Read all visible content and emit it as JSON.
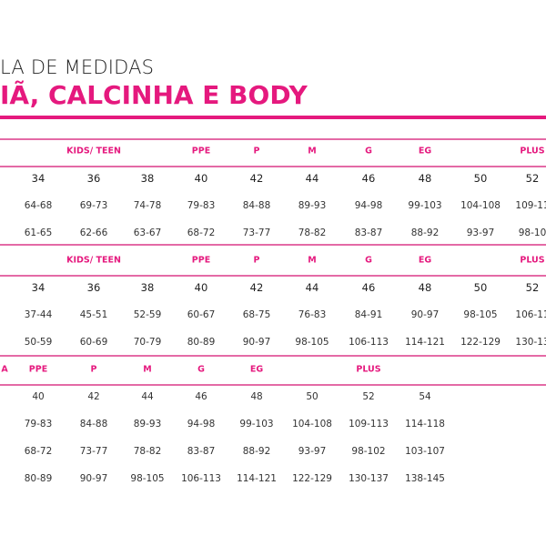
{
  "title": {
    "line1": "LA DE MEDIDAS",
    "line2": "IÃ, CALCINHA E BODY"
  },
  "colors": {
    "accent": "#e5197e",
    "rule": "#e46aa6"
  },
  "tables": [
    {
      "headers": [
        {
          "col": 1,
          "text": "KIDS/ TEEN"
        },
        {
          "col": 3,
          "text": "PPE"
        },
        {
          "col": 4,
          "text": "P"
        },
        {
          "col": 5,
          "text": "M"
        },
        {
          "col": 6,
          "text": "G"
        },
        {
          "col": 7,
          "text": "EG"
        },
        {
          "col": 9,
          "text": "PLUS"
        }
      ],
      "rows": [
        [
          "34",
          "36",
          "38",
          "40",
          "42",
          "44",
          "46",
          "48",
          "50",
          "52"
        ],
        [
          "64-68",
          "69-73",
          "74-78",
          "79-83",
          "84-88",
          "89-93",
          "94-98",
          "99-103",
          "104-108",
          "109-11"
        ],
        [
          "61-65",
          "62-66",
          "63-67",
          "68-72",
          "73-77",
          "78-82",
          "83-87",
          "88-92",
          "93-97",
          "98-10"
        ]
      ]
    },
    {
      "headers": [
        {
          "col": 1,
          "text": "KIDS/ TEEN"
        },
        {
          "col": 3,
          "text": "PPE"
        },
        {
          "col": 4,
          "text": "P"
        },
        {
          "col": 5,
          "text": "M"
        },
        {
          "col": 6,
          "text": "G"
        },
        {
          "col": 7,
          "text": "EG"
        },
        {
          "col": 9,
          "text": "PLUS"
        }
      ],
      "rows": [
        [
          "34",
          "36",
          "38",
          "40",
          "42",
          "44",
          "46",
          "48",
          "50",
          "52"
        ],
        [
          "37-44",
          "45-51",
          "52-59",
          "60-67",
          "68-75",
          "76-83",
          "84-91",
          "90-97",
          "98-105",
          "106-11"
        ],
        [
          "50-59",
          "60-69",
          "70-79",
          "80-89",
          "90-97",
          "98-105",
          "106-113",
          "114-121",
          "122-129",
          "130-13"
        ]
      ]
    },
    {
      "headers": [
        {
          "col": -1,
          "text": "A"
        },
        {
          "col": 0,
          "text": "PPE"
        },
        {
          "col": 1,
          "text": "P"
        },
        {
          "col": 2,
          "text": "M"
        },
        {
          "col": 3,
          "text": "G"
        },
        {
          "col": 4,
          "text": "EG"
        },
        {
          "col": 6,
          "text": "PLUS"
        }
      ],
      "rows": [
        [
          "40",
          "42",
          "44",
          "46",
          "48",
          "50",
          "52",
          "54"
        ],
        [
          "79-83",
          "84-88",
          "89-93",
          "94-98",
          "99-103",
          "104-108",
          "109-113",
          "114-118"
        ],
        [
          "68-72",
          "73-77",
          "78-82",
          "83-87",
          "88-92",
          "93-97",
          "98-102",
          "103-107"
        ],
        [
          "80-89",
          "90-97",
          "98-105",
          "106-113",
          "114-121",
          "122-129",
          "130-137",
          "138-145"
        ]
      ]
    }
  ]
}
